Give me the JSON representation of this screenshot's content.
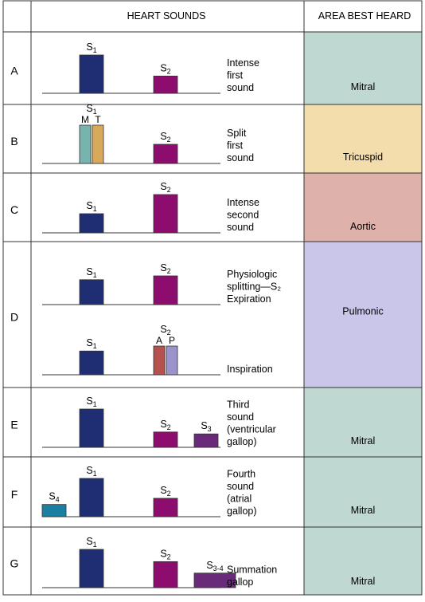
{
  "header": {
    "heart_sounds": "HEART SOUNDS",
    "area_best_heard": "AREA BEST HEARD"
  },
  "colors": {
    "s1": "#1f2e73",
    "s2": "#8c0d6e",
    "s3": "#6a2a7a",
    "s4": "#1a7fa0",
    "split_m": "#78b4ae",
    "split_t": "#d8a95a",
    "split_a": "#b5524d",
    "split_p": "#9b93cc",
    "mitral": "#bfd8d2",
    "tricuspid": "#f3ddac",
    "aortic": "#deb2aa",
    "pulmonic": "#c9c6ea"
  },
  "rows": [
    {
      "letter": "A",
      "area": "Mitral",
      "area_color": "mitral",
      "tracks": [
        {
          "caption": [
            "Intense",
            "first",
            "sound"
          ],
          "bars": [
            {
              "label": "S",
              "sub": "1",
              "color": "s1",
              "amplitude": 1.0
            },
            {
              "label": "S",
              "sub": "2",
              "color": "s2",
              "amplitude": 0.45
            }
          ]
        }
      ]
    },
    {
      "letter": "B",
      "area": "Tricuspid",
      "area_color": "tricuspid",
      "tracks": [
        {
          "caption": [
            "Split",
            "first",
            "sound"
          ],
          "bars": [
            {
              "label": "S",
              "sub": "1",
              "split": true,
              "parts": [
                {
                  "label": "M",
                  "color": "split_m",
                  "amplitude": 1.0
                },
                {
                  "label": "T",
                  "color": "split_t",
                  "amplitude": 1.0
                }
              ]
            },
            {
              "label": "S",
              "sub": "2",
              "color": "s2",
              "amplitude": 0.5
            }
          ]
        }
      ]
    },
    {
      "letter": "C",
      "area": "Aortic",
      "area_color": "aortic",
      "tracks": [
        {
          "caption": [
            "Intense",
            "second",
            "sound"
          ],
          "bars": [
            {
              "label": "S",
              "sub": "1",
              "color": "s1",
              "amplitude": 0.5
            },
            {
              "label": "S",
              "sub": "2",
              "color": "s2",
              "amplitude": 1.0
            }
          ]
        }
      ]
    },
    {
      "letter": "D",
      "area": "Pulmonic",
      "area_color": "pulmonic",
      "tracks": [
        {
          "caption": [
            "Physiologic",
            "splitting—S₂",
            "Expiration"
          ],
          "bars": [
            {
              "label": "S",
              "sub": "1",
              "color": "s1",
              "amplitude": 0.65
            },
            {
              "label": "S",
              "sub": "2",
              "color": "s2",
              "amplitude": 0.75
            }
          ]
        },
        {
          "caption": [
            "Inspiration"
          ],
          "bars": [
            {
              "label": "S",
              "sub": "1",
              "color": "s1",
              "amplitude": 0.62
            },
            {
              "label": "S",
              "sub": "2",
              "split": true,
              "parts": [
                {
                  "label": "A",
                  "color": "split_a",
                  "amplitude": 0.75
                },
                {
                  "label": "P",
                  "color": "split_p",
                  "amplitude": 0.75
                }
              ]
            }
          ]
        }
      ]
    },
    {
      "letter": "E",
      "area": "Mitral",
      "area_color": "mitral",
      "tracks": [
        {
          "caption": [
            "Third",
            "sound",
            "(ventricular",
            "gallop)"
          ],
          "bars": [
            {
              "label": "S",
              "sub": "1",
              "color": "s1",
              "amplitude": 1.0
            },
            {
              "label": "S",
              "sub": "2",
              "color": "s2",
              "amplitude": 0.4
            },
            {
              "label": "S",
              "sub": "3",
              "color": "s3",
              "amplitude": 0.35
            }
          ]
        }
      ]
    },
    {
      "letter": "F",
      "area": "Mitral",
      "area_color": "mitral",
      "tracks": [
        {
          "caption": [
            "Fourth",
            "sound",
            "(atrial",
            "gallop)"
          ],
          "bars": [
            {
              "label": "S",
              "sub": "4",
              "color": "s4",
              "amplitude": 0.32
            },
            {
              "label": "S",
              "sub": "1",
              "color": "s1",
              "amplitude": 1.0
            },
            {
              "label": "S",
              "sub": "2",
              "color": "s2",
              "amplitude": 0.48
            }
          ]
        }
      ]
    },
    {
      "letter": "G",
      "area": "Mitral",
      "area_color": "mitral",
      "tracks": [
        {
          "caption": [
            "Summation",
            "gallop"
          ],
          "bars": [
            {
              "label": "S",
              "sub": "1",
              "color": "s1",
              "amplitude": 1.0
            },
            {
              "label": "S",
              "sub": "2",
              "color": "s2",
              "amplitude": 0.68
            },
            {
              "label": "S",
              "sub": "3-4",
              "color": "s3",
              "amplitude": 0.38
            }
          ]
        }
      ]
    }
  ]
}
